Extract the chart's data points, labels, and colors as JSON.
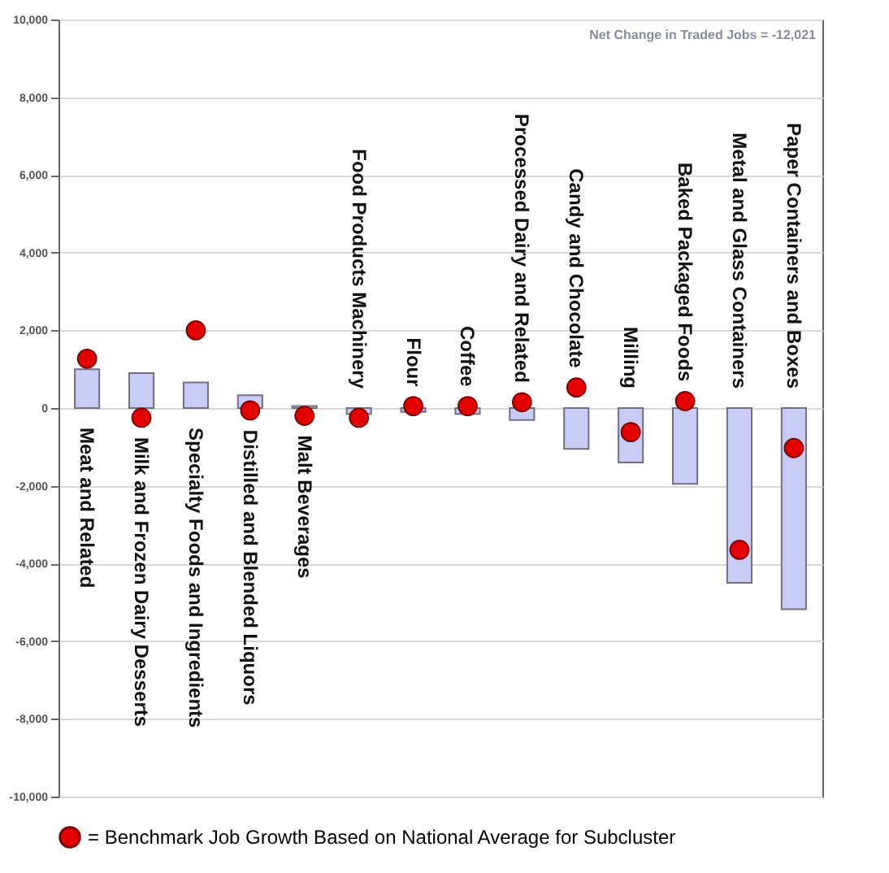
{
  "chart_data": {
    "type": "bar",
    "categories": [
      "Meat and Related",
      "Milk and Frozen Dairy Desserts",
      "Specialty Foods and Ingredients",
      "Distilled and Blended Liquors",
      "Malt Beverages",
      "Food Products Machinery",
      "Flour",
      "Coffee",
      "Processed Dairy and Related",
      "Candy and Chocolate",
      "Milling",
      "Baked Packaged Foods",
      "Metal and Glass Containers",
      "Paper Containers and Boxes"
    ],
    "series": [
      {
        "color": "#c8ccf5",
        "values": [
          1000,
          900,
          660,
          330,
          50,
          -150,
          -100,
          -150,
          -310,
          -1050,
          -1400,
          -1950,
          -4500,
          -5180
        ]
      },
      {
        "type": "scatter",
        "name": "= Benchmark Job Growth Based on National Average for Subcluster",
        "color": "#e50000",
        "marker": "circle",
        "values": [
          1270,
          -250,
          2000,
          -60,
          -200,
          -250,
          50,
          50,
          150,
          530,
          -620,
          180,
          -3650,
          -1030
        ]
      }
    ],
    "ylim": [
      -10000,
      10000
    ],
    "yticks": [
      {
        "value": -10000,
        "label": "-10,000"
      },
      {
        "value": -8000,
        "label": "-8,000"
      },
      {
        "value": -6000,
        "label": "-6,000"
      },
      {
        "value": -4000,
        "label": "-4,000"
      },
      {
        "value": -2000,
        "label": "-2,000"
      },
      0,
      {
        "value": 2000,
        "label": "2,000"
      },
      {
        "value": 4000,
        "label": "4,000"
      },
      {
        "value": 6000,
        "label": "6,000"
      },
      {
        "value": 8000,
        "label": "8,000"
      },
      {
        "value": 10000,
        "label": "10,000"
      }
    ],
    "annotations": [
      "Net Change in Traded Jobs = -12,021"
    ],
    "grid": "y",
    "legend": "bottom",
    "tick_labels": "y"
  }
}
